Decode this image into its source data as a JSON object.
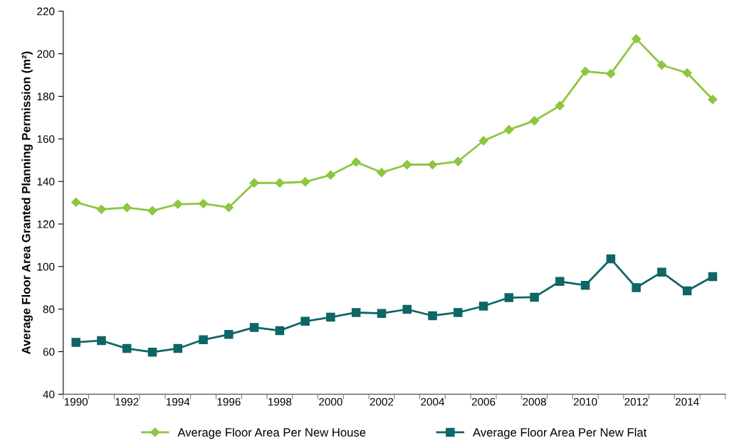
{
  "chart_data": {
    "type": "line",
    "ylabel": "Average Floor Area Granted Planning Permission (m²)",
    "categories": [
      "1990",
      null,
      "1992",
      null,
      "1994",
      null,
      "1996",
      null,
      "1998",
      null,
      "2000",
      null,
      "2002",
      null,
      "2004",
      null,
      "2006",
      null,
      "2008",
      null,
      "2010",
      null,
      "2012",
      null,
      "2014",
      null
    ],
    "series": [
      {
        "name": "Average Floor Area Per New House",
        "color": "#8dc63f",
        "marker": "diamond",
        "values": [
          130.2,
          126.9,
          127.7,
          126.2,
          129.3,
          129.6,
          127.8,
          139.3,
          139.3,
          139.8,
          143.0,
          149.1,
          144.2,
          147.9,
          147.9,
          149.4,
          159.1,
          164.3,
          168.5,
          175.6,
          191.7,
          190.6,
          207.0,
          194.7,
          191.0,
          178.5
        ]
      },
      {
        "name": "Average Floor Area Per New Flat",
        "color": "#0e6666",
        "marker": "square",
        "values": [
          64.4,
          65.2,
          61.5,
          59.8,
          61.5,
          65.6,
          68.1,
          71.4,
          69.9,
          74.3,
          76.2,
          78.4,
          78.0,
          79.9,
          76.9,
          78.4,
          81.4,
          85.4,
          85.6,
          93.0,
          91.2,
          103.6,
          90.1,
          97.4,
          88.6,
          95.3
        ]
      }
    ],
    "ylim": [
      40,
      220
    ],
    "yticks": [
      40,
      60,
      80,
      100,
      120,
      140,
      160,
      180,
      200,
      220
    ],
    "grid": false,
    "legend": "bottom",
    "line_style": "solid"
  }
}
